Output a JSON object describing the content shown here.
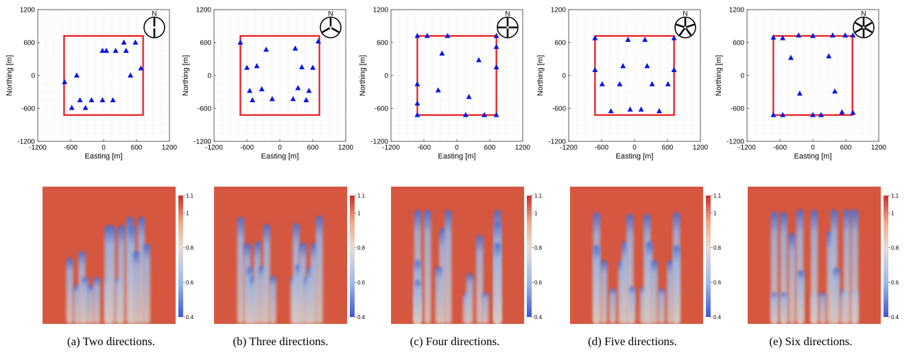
{
  "chart_data": [
    {
      "type": "scatter",
      "panel": "a",
      "xlabel": "Easting [m]",
      "ylabel": "Northing [m]",
      "xlim": [
        -1200,
        1200
      ],
      "ylim": [
        -1200,
        1200
      ],
      "xticks": [
        "-1200",
        "-600",
        "0",
        "600",
        "1200"
      ],
      "yticks": [
        "1200",
        "600",
        "0",
        "-600",
        "-1200"
      ],
      "compass_label": "N",
      "boundary": [
        [
          -720,
          -720
        ],
        [
          720,
          -720
        ],
        [
          720,
          720
        ],
        [
          -720,
          720
        ]
      ],
      "turbines": [
        [
          -710,
          -120
        ],
        [
          -580,
          -590
        ],
        [
          -490,
          0
        ],
        [
          -430,
          -450
        ],
        [
          -330,
          -590
        ],
        [
          -220,
          -450
        ],
        [
          -20,
          -450
        ],
        [
          170,
          -450
        ],
        [
          50,
          450
        ],
        [
          220,
          450
        ],
        [
          370,
          600
        ],
        [
          410,
          450
        ],
        [
          580,
          600
        ],
        [
          490,
          0
        ],
        [
          680,
          130
        ],
        [
          -20,
          450
        ]
      ],
      "wind_directions": 2,
      "heatmap": {
        "colorbar_ticks": [
          "1.1",
          "1",
          "0.8",
          "0.6",
          "0.4"
        ],
        "range": [
          0.4,
          1.1
        ]
      },
      "caption": "(a) Two directions."
    },
    {
      "type": "scatter",
      "panel": "b",
      "xlabel": "Easting [m]",
      "ylabel": "Northing [m]",
      "xlim": [
        -1200,
        1200
      ],
      "ylim": [
        -1200,
        1200
      ],
      "xticks": [
        "-1200",
        "-600",
        "0",
        "600",
        "1200"
      ],
      "yticks": [
        "1200",
        "600",
        "0",
        "-600",
        "-1200"
      ],
      "compass_label": "N",
      "boundary": [
        [
          -720,
          -720
        ],
        [
          720,
          -720
        ],
        [
          720,
          720
        ],
        [
          -720,
          720
        ]
      ],
      "turbines": [
        [
          -720,
          600
        ],
        [
          -600,
          140
        ],
        [
          -550,
          -280
        ],
        [
          -500,
          -450
        ],
        [
          -420,
          170
        ],
        [
          -330,
          -250
        ],
        [
          -250,
          470
        ],
        [
          -140,
          -430
        ],
        [
          240,
          -430
        ],
        [
          280,
          490
        ],
        [
          330,
          -230
        ],
        [
          400,
          150
        ],
        [
          480,
          -450
        ],
        [
          530,
          -280
        ],
        [
          600,
          140
        ],
        [
          700,
          620
        ]
      ],
      "wind_directions": 3,
      "heatmap": {
        "colorbar_ticks": [
          "1.1",
          "1",
          "0.8",
          "0.6",
          "0.4"
        ],
        "range": [
          0.4,
          1.1
        ]
      },
      "caption": "(b) Three directions."
    },
    {
      "type": "scatter",
      "panel": "c",
      "xlabel": "Easting [m]",
      "ylabel": "Northing [m]",
      "xlim": [
        -1200,
        1200
      ],
      "ylim": [
        -1200,
        1200
      ],
      "xticks": [
        "-1200",
        "-600",
        "0",
        "600",
        "1200"
      ],
      "yticks": [
        "1200",
        "600",
        "0",
        "-600",
        "-1200"
      ],
      "compass_label": "N",
      "boundary": [
        [
          -720,
          -720
        ],
        [
          720,
          -720
        ],
        [
          720,
          720
        ],
        [
          -720,
          720
        ]
      ],
      "turbines": [
        [
          -720,
          720
        ],
        [
          -720,
          -720
        ],
        [
          -720,
          -160
        ],
        [
          -720,
          -510
        ],
        [
          -540,
          720
        ],
        [
          -270,
          400
        ],
        [
          -170,
          720
        ],
        [
          -340,
          -270
        ],
        [
          160,
          -720
        ],
        [
          220,
          -390
        ],
        [
          400,
          280
        ],
        [
          500,
          -720
        ],
        [
          720,
          720
        ],
        [
          720,
          -720
        ],
        [
          720,
          520
        ],
        [
          720,
          150
        ]
      ],
      "wind_directions": 4,
      "heatmap": {
        "colorbar_ticks": [
          "1.1",
          "1",
          "0.8",
          "0.6",
          "0.4"
        ],
        "range": [
          0.4,
          1.1
        ]
      },
      "caption": "(c) Four directions."
    },
    {
      "type": "scatter",
      "panel": "d",
      "xlabel": "Easting [m]",
      "ylabel": "Northing [m]",
      "xlim": [
        -1200,
        1200
      ],
      "ylim": [
        -1200,
        1200
      ],
      "xticks": [
        "-1200",
        "-600",
        "0",
        "600",
        "1200"
      ],
      "yticks": [
        "1200",
        "600",
        "0",
        "-600",
        "-1200"
      ],
      "compass_label": "N",
      "boundary": [
        [
          -720,
          -720
        ],
        [
          720,
          -720
        ],
        [
          720,
          720
        ],
        [
          -720,
          720
        ]
      ],
      "turbines": [
        [
          -720,
          680
        ],
        [
          -720,
          100
        ],
        [
          -590,
          -160
        ],
        [
          -430,
          -650
        ],
        [
          -270,
          -160
        ],
        [
          -210,
          170
        ],
        [
          -120,
          650
        ],
        [
          -80,
          -620
        ],
        [
          120,
          -620
        ],
        [
          190,
          650
        ],
        [
          230,
          170
        ],
        [
          320,
          -160
        ],
        [
          450,
          -650
        ],
        [
          610,
          -160
        ],
        [
          720,
          680
        ],
        [
          720,
          100
        ]
      ],
      "wind_directions": 5,
      "heatmap": {
        "colorbar_ticks": [
          "1.1",
          "1",
          "0.8",
          "0.6",
          "0.4"
        ],
        "range": [
          0.4,
          1.1
        ]
      },
      "caption": "(d) Five directions."
    },
    {
      "type": "scatter",
      "panel": "e",
      "xlabel": "Easting [m]",
      "ylabel": "Northing [m]",
      "xlim": [
        -1200,
        1200
      ],
      "ylim": [
        -1200,
        1200
      ],
      "xticks": [
        "-1200",
        "-600",
        "0",
        "600",
        "1200"
      ],
      "yticks": [
        "1200",
        "600",
        "0",
        "-600",
        "-1200"
      ],
      "compass_label": "N",
      "boundary": [
        [
          -720,
          -720
        ],
        [
          720,
          -720
        ],
        [
          720,
          720
        ],
        [
          -720,
          720
        ]
      ],
      "turbines": [
        [
          -720,
          690
        ],
        [
          -720,
          -720
        ],
        [
          -550,
          680
        ],
        [
          -550,
          -720
        ],
        [
          -400,
          320
        ],
        [
          -260,
          730
        ],
        [
          -240,
          -330
        ],
        [
          0,
          -720
        ],
        [
          0,
          720
        ],
        [
          150,
          -720
        ],
        [
          290,
          350
        ],
        [
          360,
          730
        ],
        [
          400,
          -290
        ],
        [
          530,
          -670
        ],
        [
          590,
          730
        ],
        [
          730,
          -680
        ],
        [
          730,
          730
        ]
      ],
      "wind_directions": 6,
      "heatmap": {
        "colorbar_ticks": [
          "1.1",
          "1",
          "0.8",
          "0.6",
          "0.4"
        ],
        "range": [
          0.4,
          1.1
        ]
      },
      "caption": "(e) Six directions."
    }
  ]
}
